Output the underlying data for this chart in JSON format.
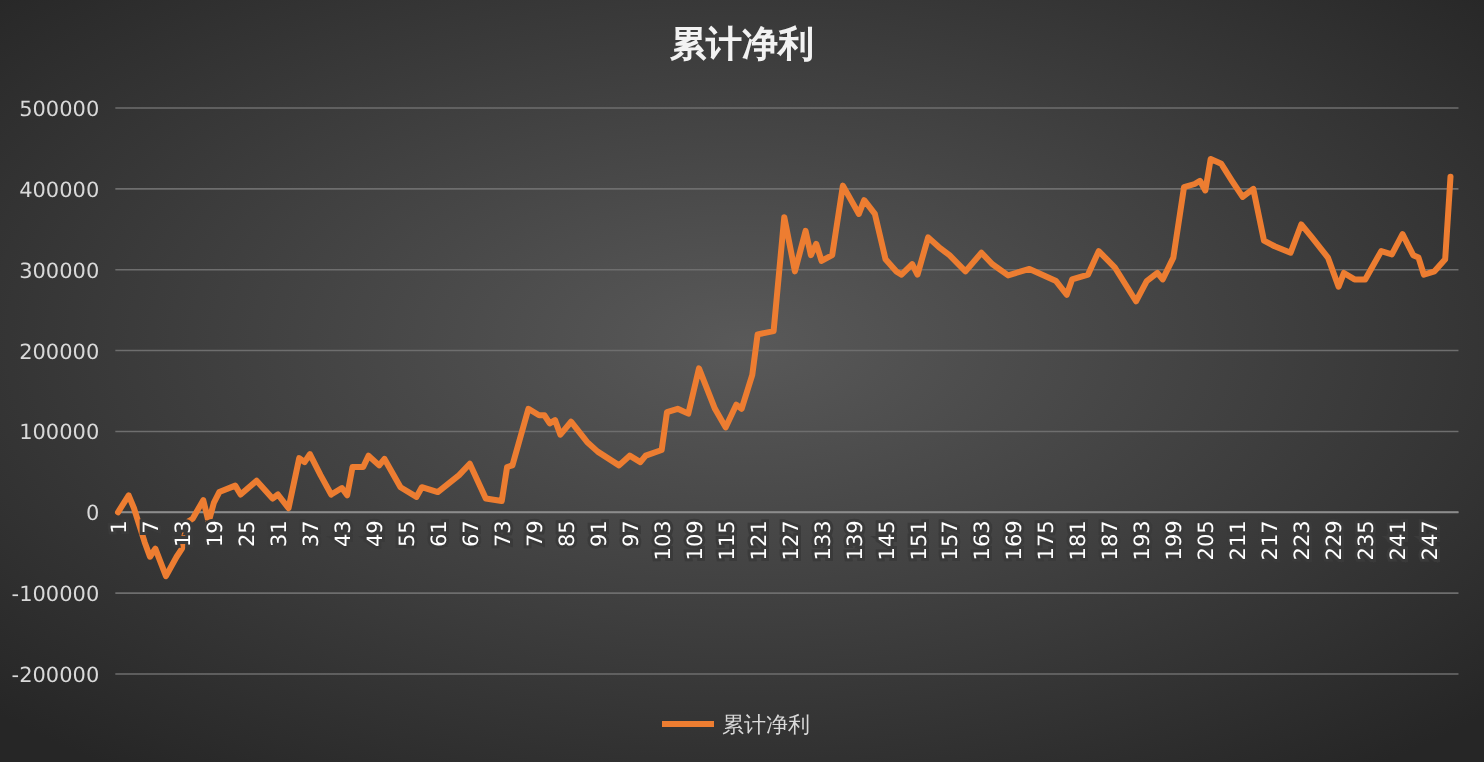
{
  "chart_data": {
    "type": "line",
    "title": "累计净利",
    "legend": "bottom",
    "grid": "y",
    "marker": "none",
    "line_style": "solid",
    "xlim": [
      0.5,
      252.5
    ],
    "xticks": [
      1,
      7,
      13,
      19,
      25,
      31,
      37,
      43,
      49,
      55,
      61,
      67,
      73,
      79,
      85,
      91,
      97,
      103,
      109,
      115,
      121,
      127,
      133,
      139,
      145,
      151,
      157,
      163,
      169,
      175,
      181,
      187,
      193,
      199,
      205,
      211,
      217,
      223,
      229,
      235,
      241,
      247
    ],
    "ylim": [
      -200000,
      500000
    ],
    "yticks": [
      -200000,
      -100000,
      0,
      100000,
      200000,
      300000,
      400000,
      500000
    ],
    "series": [
      {
        "name": "累计净利",
        "color": "#ed7d31",
        "x": [
          1,
          3,
          4,
          6,
          7,
          8,
          10,
          12,
          13,
          14,
          15,
          17,
          18,
          19,
          20,
          23,
          24,
          27,
          30,
          31,
          33,
          35,
          36,
          37,
          39,
          41,
          43,
          44,
          45,
          47,
          48,
          50,
          51,
          54,
          57,
          58,
          61,
          65,
          67,
          70,
          73,
          74,
          75,
          78,
          80,
          81,
          82,
          83,
          84,
          86,
          89,
          91,
          95,
          97,
          99,
          100,
          103,
          104,
          106,
          108,
          110,
          113,
          115,
          117,
          118,
          120,
          121,
          124,
          126,
          128,
          130,
          131,
          132,
          133,
          135,
          137,
          140,
          141,
          143,
          145,
          147,
          148,
          150,
          151,
          153,
          155,
          157,
          160,
          163,
          165,
          168,
          172,
          177,
          179,
          180,
          183,
          185,
          188,
          192,
          194,
          196,
          197,
          199,
          201,
          203,
          204,
          205,
          206,
          208,
          210,
          212,
          214,
          216,
          218,
          221,
          223,
          225,
          228,
          230,
          231,
          233,
          235,
          238,
          240,
          242,
          244,
          245,
          246,
          248,
          250,
          251
        ],
        "values": [
          0,
          21000,
          5000,
          -37000,
          -55000,
          -45000,
          -79000,
          -55000,
          -45000,
          -12000,
          -8000,
          15000,
          -12000,
          12000,
          25000,
          33000,
          22000,
          39000,
          17000,
          22000,
          5000,
          67000,
          62000,
          72000,
          46000,
          22000,
          30000,
          21000,
          56000,
          56000,
          70000,
          58000,
          66000,
          31000,
          19000,
          31000,
          25000,
          46000,
          60000,
          17000,
          14000,
          56000,
          58000,
          128000,
          120000,
          120000,
          110000,
          114000,
          96000,
          112000,
          87000,
          75000,
          58000,
          70000,
          62000,
          70000,
          77000,
          124000,
          128000,
          122000,
          178000,
          128000,
          105000,
          133000,
          128000,
          170000,
          220000,
          224000,
          365000,
          298000,
          348000,
          318000,
          332000,
          311000,
          318000,
          404000,
          369000,
          386000,
          369000,
          313000,
          298000,
          294000,
          307000,
          294000,
          340000,
          328000,
          318000,
          298000,
          321000,
          307000,
          293000,
          301000,
          286000,
          269000,
          288000,
          294000,
          323000,
          303000,
          261000,
          286000,
          296000,
          288000,
          315000,
          402000,
          406000,
          410000,
          398000,
          437000,
          431000,
          410000,
          390000,
          400000,
          336000,
          329000,
          321000,
          356000,
          340000,
          315000,
          279000,
          296000,
          288000,
          288000,
          323000,
          319000,
          344000,
          318000,
          315000,
          294000,
          298000,
          313000,
          415000
        ]
      }
    ]
  }
}
